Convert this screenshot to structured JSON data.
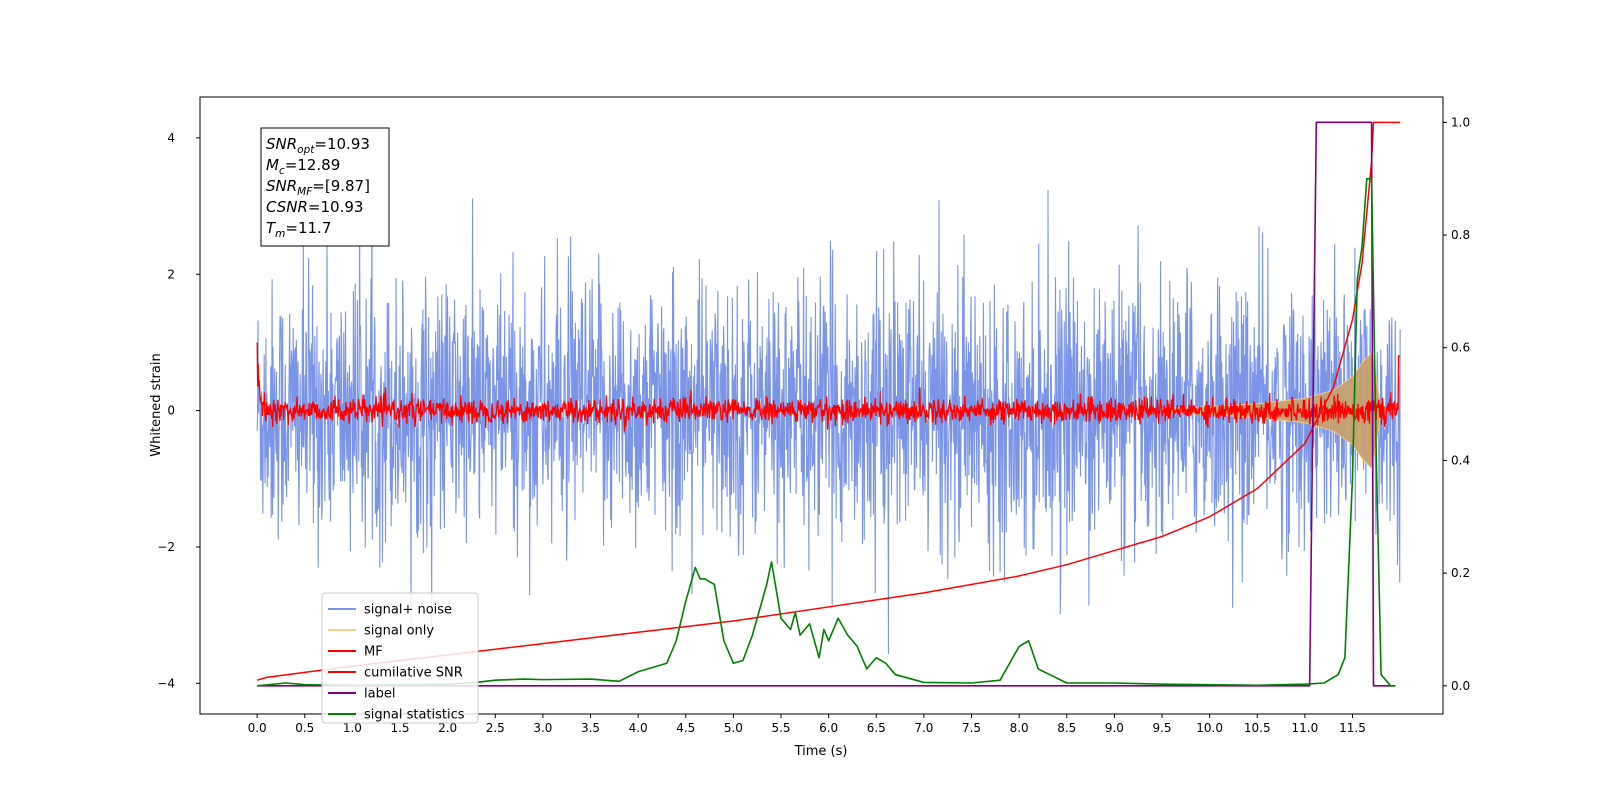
{
  "chart_data": {
    "type": "line",
    "xlabel": "Time (s)",
    "ylabel": "Whitened strain",
    "xlim": [
      -0.6,
      12.45
    ],
    "ylim_left": [
      -4.45,
      4.6
    ],
    "ylim_right": [
      -0.05,
      1.045
    ],
    "x_ticks": [
      "0.0",
      "0.5",
      "1.0",
      "1.5",
      "2.0",
      "2.5",
      "3.0",
      "3.5",
      "4.0",
      "4.5",
      "5.0",
      "5.5",
      "6.0",
      "6.5",
      "7.0",
      "7.5",
      "8.0",
      "8.5",
      "9.0",
      "9.5",
      "10.0",
      "10.5",
      "11.0",
      "11.5"
    ],
    "y_ticks_left": [
      "4",
      "2",
      "0",
      "−2",
      "−4"
    ],
    "y_ticks_right": [
      "1.0",
      "0.8",
      "0.6",
      "0.4",
      "0.2",
      "0.0"
    ],
    "colors": {
      "signal_noise": "#7a95e8",
      "signal_only": "#c8a070",
      "mf": "#ff0000",
      "cumulative": "#ff0000",
      "label": "#800080",
      "statistics": "#008000"
    },
    "annotation": {
      "snr_opt_base": "SNR",
      "snr_opt_sub": "opt",
      "snr_opt_value": "=10.93",
      "mc_base": "M",
      "mc_sub": "c",
      "mc_value": "=12.89",
      "snr_mf_base": "SNR",
      "snr_mf_sub": "MF",
      "snr_mf_value": "=[9.87]",
      "csnr_base": "CSNR",
      "csnr_value": "=10.93",
      "tm_base": "T",
      "tm_sub": "m",
      "tm_value": "=11.7"
    },
    "legend": {
      "placement": "lower-left",
      "entries": [
        "signal+ noise",
        "signal only",
        "MF",
        "cumilative SNR",
        "label",
        "signal statistics"
      ]
    },
    "series": [
      {
        "name": "signal+ noise",
        "axis": "left",
        "description_values": {
          "x_range": [
            0.0,
            12.0
          ],
          "noise_std": 0.95
        }
      },
      {
        "name": "signal only",
        "axis": "left",
        "envelope": {
          "x": [
            9.5,
            10.0,
            10.5,
            11.0,
            11.3,
            11.5,
            11.6,
            11.7,
            11.75,
            11.8
          ],
          "amp": [
            0.03,
            0.06,
            0.1,
            0.18,
            0.3,
            0.5,
            0.7,
            0.85,
            0.5,
            0.0
          ]
        }
      },
      {
        "name": "MF",
        "axis": "left",
        "x_range": [
          0.0,
          12.0
        ],
        "start_value": 1.0,
        "noise_std": 0.09
      },
      {
        "name": "cumilative SNR",
        "axis": "right",
        "x": [
          0.0,
          0.1,
          1.0,
          2.0,
          3.0,
          4.0,
          5.0,
          6.0,
          7.0,
          8.0,
          8.5,
          9.0,
          9.5,
          10.0,
          10.5,
          11.0,
          11.3,
          11.5,
          11.6,
          11.7,
          11.72,
          12.0
        ],
        "y": [
          0.01,
          0.015,
          0.035,
          0.055,
          0.075,
          0.095,
          0.115,
          0.14,
          0.165,
          0.195,
          0.215,
          0.24,
          0.265,
          0.3,
          0.35,
          0.43,
          0.53,
          0.65,
          0.75,
          0.93,
          1.0,
          1.0
        ]
      },
      {
        "name": "label",
        "axis": "right",
        "x": [
          0.0,
          11.05,
          11.12,
          11.7,
          11.72,
          11.75,
          11.95
        ],
        "y": [
          0.0,
          0.0,
          1.0,
          1.0,
          0.0,
          0.0,
          0.0
        ]
      },
      {
        "name": "signal statistics",
        "axis": "right",
        "x": [
          0.0,
          0.3,
          0.5,
          1.0,
          1.5,
          2.0,
          2.3,
          2.5,
          2.8,
          3.0,
          3.5,
          3.8,
          4.0,
          4.1,
          4.2,
          4.3,
          4.4,
          4.5,
          4.6,
          4.65,
          4.7,
          4.8,
          4.9,
          5.0,
          5.1,
          5.2,
          5.3,
          5.35,
          5.4,
          5.5,
          5.6,
          5.65,
          5.7,
          5.8,
          5.9,
          5.95,
          6.0,
          6.1,
          6.2,
          6.3,
          6.4,
          6.5,
          6.6,
          6.7,
          7.0,
          7.5,
          7.8,
          7.9,
          8.0,
          8.1,
          8.2,
          8.5,
          9.0,
          9.5,
          10.0,
          10.5,
          11.0,
          11.2,
          11.35,
          11.42,
          11.5,
          11.55,
          11.6,
          11.65,
          11.7,
          11.75,
          11.8,
          11.9,
          11.95
        ],
        "y": [
          0.0,
          0.005,
          0.002,
          0.001,
          0.002,
          0.003,
          0.006,
          0.01,
          0.012,
          0.011,
          0.012,
          0.008,
          0.025,
          0.03,
          0.035,
          0.04,
          0.08,
          0.15,
          0.21,
          0.19,
          0.19,
          0.18,
          0.08,
          0.04,
          0.045,
          0.09,
          0.15,
          0.18,
          0.22,
          0.12,
          0.1,
          0.13,
          0.09,
          0.11,
          0.05,
          0.1,
          0.08,
          0.12,
          0.09,
          0.07,
          0.03,
          0.05,
          0.04,
          0.02,
          0.006,
          0.005,
          0.01,
          0.04,
          0.07,
          0.08,
          0.03,
          0.005,
          0.005,
          0.003,
          0.002,
          0.001,
          0.003,
          0.005,
          0.02,
          0.05,
          0.37,
          0.72,
          0.78,
          0.9,
          0.9,
          0.4,
          0.02,
          0.0,
          0.0
        ]
      }
    ]
  }
}
